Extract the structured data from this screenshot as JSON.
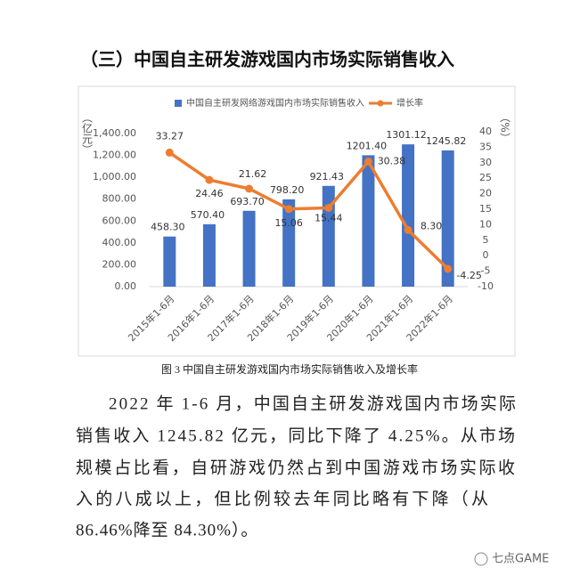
{
  "heading": "（三）中国自主研发游戏国内市场实际销售收入",
  "chart_data": {
    "type": "bar",
    "y_label": "（亿元）",
    "y2_label": "（%）",
    "categories": [
      "2015年1-6月",
      "2016年1-6月",
      "2017年1-6月",
      "2018年1-6月",
      "2019年1-6月",
      "2020年1-6月",
      "2021年1-6月",
      "2022年1-6月"
    ],
    "series": [
      {
        "name": "中国自主研发网络游戏国内市场实际销售收入",
        "color": "#4472c4",
        "type": "bar",
        "values": [
          458.3,
          570.4,
          693.7,
          798.2,
          921.43,
          1201.4,
          1301.12,
          1245.82
        ],
        "value_labels": [
          "458.30",
          "570.40",
          "693.70",
          "798.20",
          "921.43",
          "1201.40",
          "1301.12",
          "1245.82"
        ]
      },
      {
        "name": "增长率",
        "color": "#ed7d31",
        "type": "line",
        "axis": "y2",
        "values": [
          33.27,
          24.46,
          21.62,
          15.06,
          15.44,
          30.38,
          8.3,
          -4.25
        ],
        "value_labels": [
          "33.27",
          "24.46",
          "21.62",
          "15.06",
          "15.44",
          "30.38",
          "8.30",
          "-4.25"
        ]
      }
    ],
    "ylim": [
      0,
      1400
    ],
    "yticks": [
      {
        "value": 0,
        "label": "0.00"
      },
      {
        "value": 200,
        "label": "200.00"
      },
      {
        "value": 400,
        "label": "400.00"
      },
      {
        "value": 600,
        "label": "600.00"
      },
      {
        "value": 800,
        "label": "800.00"
      },
      {
        "value": 1000,
        "label": "1,000.00"
      },
      {
        "value": 1200,
        "label": "1,200.00"
      },
      {
        "value": 1400,
        "label": "1,400.00"
      }
    ],
    "y2lim": [
      -10,
      40
    ],
    "y2ticks": [
      -10,
      -5,
      0,
      5,
      10,
      15,
      20,
      25,
      30,
      35,
      40
    ],
    "grid": false,
    "legend": "top"
  },
  "caption": "图 3  中国自主研发游戏国内市场实际销售收入及增长率",
  "paragraph_lines": [
    "2022 年 1-6 月，中国自主研发游戏国内市场实际",
    "销售收入 1245.82 亿元，同比下降了 4.25%。从市场",
    "规模占比看，自研游戏仍然占到中国游戏市场实际收",
    "入的八成以上，但比例较去年同比略有下降（从",
    "86.46%降至 84.30%）。"
  ],
  "watermark": "七点GAME"
}
